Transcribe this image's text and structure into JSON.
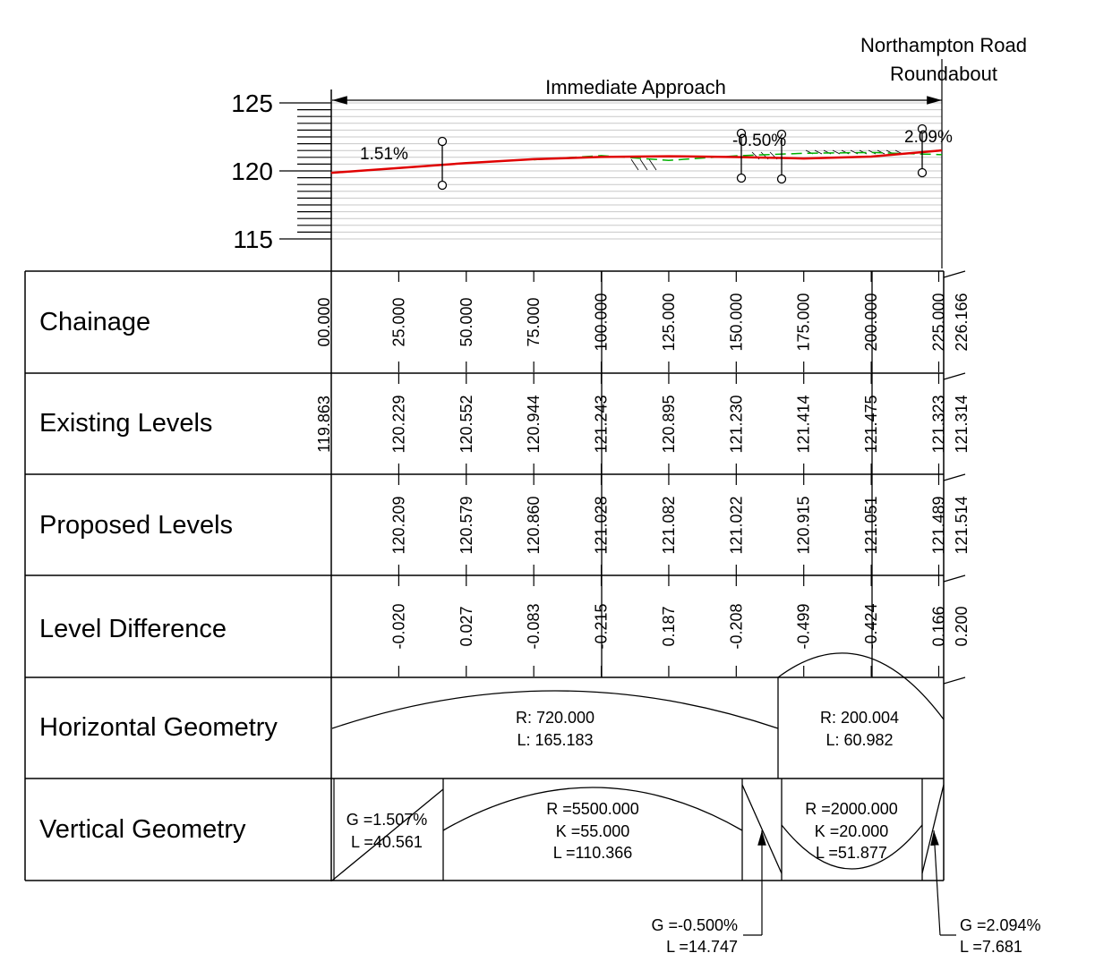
{
  "header": {
    "approach_label": "Immediate Approach",
    "roundabout_line1": "Northampton Road",
    "roundabout_line2": "Roundabout"
  },
  "axis": {
    "y_ticks": [
      {
        "value": 125,
        "label": "125"
      },
      {
        "value": 120,
        "label": "120"
      },
      {
        "value": 115,
        "label": "115"
      }
    ]
  },
  "grades": [
    {
      "label": "1.51%"
    },
    {
      "label": "-0.50%"
    },
    {
      "label": "2.09%"
    }
  ],
  "table": {
    "row_labels": {
      "chainage": "Chainage",
      "existing": "Existing Levels",
      "proposed": "Proposed Levels",
      "difference": "Level Difference",
      "horizontal": "Horizontal Geometry",
      "vertical": "Vertical Geometry"
    },
    "columns": [
      {
        "chainage": 0,
        "chainage_label": "00.000",
        "existing": "119.863",
        "proposed": "",
        "difference": ""
      },
      {
        "chainage": 25,
        "chainage_label": "25.000",
        "existing": "120.229",
        "proposed": "120.209",
        "difference": "-0.020"
      },
      {
        "chainage": 50,
        "chainage_label": "50.000",
        "existing": "120.552",
        "proposed": "120.579",
        "difference": "0.027"
      },
      {
        "chainage": 75,
        "chainage_label": "75.000",
        "existing": "120.944",
        "proposed": "120.860",
        "difference": "-0.083"
      },
      {
        "chainage": 100,
        "chainage_label": "100.000",
        "existing": "121.243",
        "proposed": "121.028",
        "difference": "-0.215"
      },
      {
        "chainage": 125,
        "chainage_label": "125.000",
        "existing": "120.895",
        "proposed": "121.082",
        "difference": "0.187"
      },
      {
        "chainage": 150,
        "chainage_label": "150.000",
        "existing": "121.230",
        "proposed": "121.022",
        "difference": "-0.208"
      },
      {
        "chainage": 175,
        "chainage_label": "175.000",
        "existing": "121.414",
        "proposed": "120.915",
        "difference": "-0.499"
      },
      {
        "chainage": 200,
        "chainage_label": "200.000",
        "existing": "121.475",
        "proposed": "121.051",
        "difference": "-0.424"
      },
      {
        "chainage": 225,
        "chainage_label": "225.000",
        "existing": "121.323",
        "proposed": "121.489",
        "difference": "0.166"
      },
      {
        "chainage": 226.166,
        "chainage_label": "226.166",
        "existing": "121.314",
        "proposed": "121.514",
        "difference": "0.200"
      }
    ]
  },
  "horizontal_geometry": [
    {
      "r_label": "R: 720.000",
      "l_label": "L: 165.183"
    },
    {
      "r_label": "R: 200.004",
      "l_label": "L: 60.982"
    }
  ],
  "vertical_geometry": [
    {
      "line1": "G =1.507%",
      "line2": "L =40.561",
      "line3": ""
    },
    {
      "line1": "R =5500.000",
      "line2": "K =55.000",
      "line3": "L =110.366"
    },
    {
      "line1": "G =-0.500%",
      "line2": "L =14.747",
      "line3": ""
    },
    {
      "line1": "R =2000.000",
      "line2": "K =20.000",
      "line3": "L =51.877"
    },
    {
      "line1": "G =2.094%",
      "line2": "L =7.681",
      "line3": ""
    }
  ],
  "colors": {
    "proposed_line": "#e00000",
    "existing_line": "#00b000",
    "grid": "#c8c8c8",
    "ink": "#000000"
  }
}
